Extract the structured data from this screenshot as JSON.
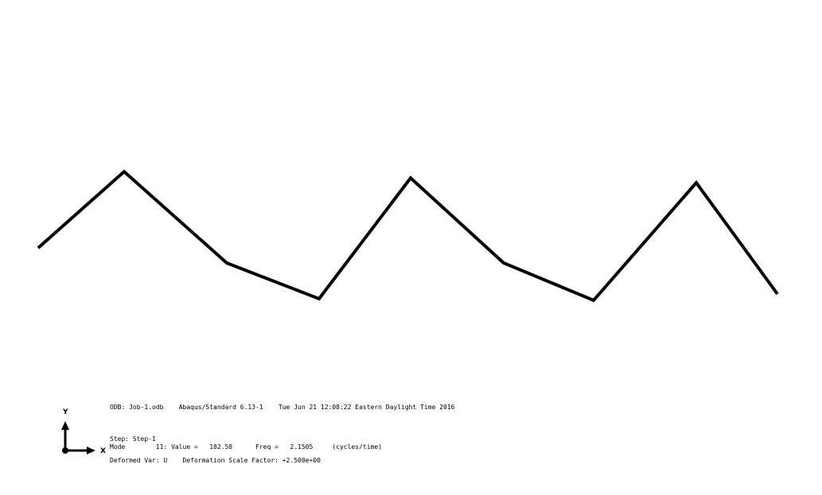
{
  "viewport": {
    "background": "#ffffff",
    "line_color": "#000000"
  },
  "triad": {
    "y_label": "Y",
    "x_label": "X"
  },
  "info": {
    "odb_line": "ODB: Job-1.odb    Abaqus/Standard 6.13-1    Tue Jun 21 12:08:22 Eastern Daylight Time 2016",
    "step_line": "Step: Step-1",
    "mode_line": "Mode        11: Value =   182.58      Freq =   2.1505     (cycles/time)",
    "deform_line": "Deformed Var: U    Deformation Scale Factor: +2.500e+00"
  }
}
